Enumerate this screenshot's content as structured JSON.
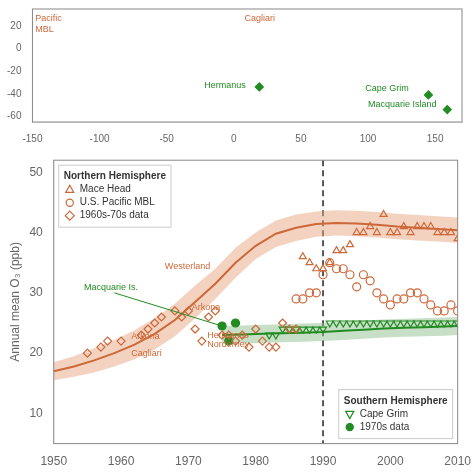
{
  "chart_data": [
    {
      "type": "scatter",
      "xlim": [
        -150,
        170
      ],
      "ylim": [
        -65,
        35
      ],
      "xticks": [
        -150,
        -100,
        -50,
        0,
        50,
        100,
        150
      ],
      "yticks": [
        -60,
        -40,
        -20,
        0,
        20
      ],
      "grid": false,
      "series": [
        {
          "type": "scatter",
          "color": "#228B22",
          "marker": "diamond",
          "x": [
            19,
            145,
            159
          ],
          "values": [
            -34,
            -41,
            -54
          ]
        }
      ],
      "annotations": [
        {
          "text": "Hermanus",
          "x": -22,
          "y": -35,
          "color": "#228B22"
        },
        {
          "text": "Cape Grim",
          "x": 98,
          "y": -38,
          "color": "#228B22"
        },
        {
          "text": "Macquarie Island",
          "x": 100,
          "y": -52,
          "color": "#228B22"
        },
        {
          "text": "Pacific\nMBL",
          "x": -148,
          "y": 24,
          "color": "#cd6839"
        },
        {
          "text": "Cagliari",
          "x": 8,
          "y": 24,
          "color": "#cd6839"
        }
      ]
    },
    {
      "type": "line",
      "ylabel": "Annual mean O₃ (ppb)",
      "xlim": [
        1950,
        2010
      ],
      "ylim": [
        5,
        52
      ],
      "xticks": [
        1950,
        1960,
        1970,
        1980,
        1990,
        2000,
        2010
      ],
      "yticks": [
        10,
        20,
        30,
        40,
        50
      ],
      "grid": false,
      "series": [
        {
          "type": "area",
          "color": "#e8a882",
          "x": [
            1950,
            1953,
            1956,
            1959,
            1962,
            1965,
            1968,
            1971,
            1974,
            1977,
            1980,
            1983,
            1986,
            1989,
            1992,
            1995,
            1998,
            2001,
            2004,
            2007,
            2010
          ],
          "lower": [
            15.5,
            16.1,
            16.8,
            17.8,
            19.0,
            20.6,
            22.8,
            25.8,
            29.0,
            32.5,
            35.6,
            37.6,
            38.6,
            39.3,
            39.5,
            39.4,
            39.2,
            38.9,
            38.7,
            38.5,
            38.3
          ],
          "upper": [
            18.5,
            19.5,
            20.8,
            22.2,
            23.8,
            25.8,
            28.2,
            31.2,
            34.0,
            37.5,
            40.0,
            42.0,
            43.0,
            43.5,
            43.7,
            43.6,
            43.4,
            43.1,
            42.9,
            42.7,
            42.5
          ]
        },
        {
          "type": "line",
          "color": "#cd6839",
          "x": [
            1950,
            1953,
            1956,
            1959,
            1962,
            1965,
            1968,
            1971,
            1974,
            1977,
            1980,
            1983,
            1986,
            1989,
            1992,
            1995,
            1998,
            2001,
            2004,
            2007,
            2010
          ],
          "values": [
            17.0,
            17.8,
            18.8,
            20.0,
            21.4,
            23.2,
            25.5,
            28.5,
            31.5,
            35.0,
            37.8,
            39.8,
            40.8,
            41.4,
            41.6,
            41.5,
            41.3,
            41.0,
            40.8,
            40.6,
            40.4
          ]
        },
        {
          "type": "area",
          "color": "#90c090",
          "x": [
            1975,
            1978,
            1981,
            1984,
            1987,
            1990,
            1993,
            1996,
            1999,
            2002,
            2005,
            2008,
            2010
          ],
          "lower": [
            21.5,
            21.6,
            21.7,
            21.8,
            21.9,
            22.0,
            22.2,
            22.4,
            22.6,
            22.7,
            22.8,
            22.9,
            23.0
          ],
          "upper": [
            24.5,
            24.6,
            24.7,
            24.8,
            24.9,
            25.0,
            25.2,
            25.4,
            25.6,
            25.7,
            25.8,
            25.9,
            26.0
          ]
        },
        {
          "type": "line",
          "color": "#228B22",
          "x": [
            1975,
            1978,
            1981,
            1984,
            1987,
            1990,
            1993,
            1996,
            1999,
            2002,
            2005,
            2008,
            2010
          ],
          "values": [
            23.0,
            23.1,
            23.2,
            23.3,
            23.4,
            23.5,
            23.7,
            23.9,
            24.1,
            24.2,
            24.3,
            24.4,
            24.5
          ]
        },
        {
          "type": "scatter",
          "name": "Mace Head",
          "color": "#cd6839",
          "marker": "triangle-open",
          "x": [
            1987,
            1988,
            1989,
            1990,
            1991,
            1992,
            1993,
            1994,
            1995,
            1996,
            1997,
            1998,
            1999,
            2000,
            2001,
            2002,
            2003,
            2004,
            2005,
            2006,
            2007,
            2008,
            2009,
            2010
          ],
          "values": [
            36,
            35,
            34,
            34,
            35,
            37,
            37,
            38,
            40,
            40,
            41,
            40,
            43,
            40,
            40,
            41,
            40,
            41,
            41,
            41,
            40,
            40,
            40,
            39
          ]
        },
        {
          "type": "scatter",
          "name": "U.S. Pacific MBL",
          "color": "#cd6839",
          "marker": "circle-open",
          "x": [
            1986,
            1987,
            1988,
            1989,
            1990,
            1991,
            1992,
            1993,
            1994,
            1995,
            1996,
            1997,
            1998,
            1999,
            2000,
            2001,
            2002,
            2003,
            2004,
            2005,
            2006,
            2007,
            2008,
            2009,
            2010
          ],
          "values": [
            29,
            29,
            30,
            30,
            33,
            35,
            34,
            34,
            33,
            31,
            33,
            32,
            30,
            29,
            28,
            29,
            29,
            30,
            30,
            29,
            28,
            27,
            27,
            28,
            27
          ]
        },
        {
          "type": "scatter",
          "name": "1960s-70s data",
          "color": "#cd6839",
          "marker": "diamond-open",
          "x": [
            1955,
            1957,
            1958,
            1960,
            1963,
            1964,
            1965,
            1966,
            1968,
            1969,
            1970,
            1971,
            1972,
            1973,
            1974,
            1975,
            1976,
            1977,
            1978,
            1979,
            1980,
            1981,
            1982,
            1983,
            1984,
            1985,
            1986
          ],
          "values": [
            20,
            21,
            22,
            22,
            23,
            24,
            25,
            26,
            27,
            26,
            27,
            24,
            22,
            26,
            27,
            23,
            23,
            22,
            23,
            21,
            24,
            22,
            21,
            21,
            25,
            24,
            24
          ]
        },
        {
          "type": "scatter",
          "name": "Cape Grim",
          "color": "#228B22",
          "marker": "triangle-down-open",
          "x": [
            1982,
            1983,
            1984,
            1985,
            1986,
            1987,
            1988,
            1989,
            1990,
            1991,
            1992,
            1993,
            1994,
            1995,
            1996,
            1997,
            1998,
            1999,
            2000,
            2001,
            2002,
            2003,
            2004,
            2005,
            2006,
            2007,
            2008,
            2009,
            2010
          ],
          "values": [
            23,
            23,
            24,
            24,
            24,
            24,
            24,
            24,
            24,
            25,
            25,
            25,
            25,
            25,
            25,
            25,
            25,
            25,
            25,
            25,
            25,
            25,
            25,
            25,
            25,
            25,
            25,
            25,
            25
          ]
        },
        {
          "type": "scatter",
          "name": "1970s data",
          "color": "#228B22",
          "marker": "circle",
          "x": [
            1975,
            1976,
            1977
          ],
          "values": [
            24.5,
            22,
            25
          ]
        },
        {
          "type": "vline",
          "color": "#000000",
          "line_style": "dashed",
          "x": [
            1990
          ]
        }
      ],
      "annotations": [
        {
          "text": "Westerland",
          "x": 1966.5,
          "y": 34.0,
          "color": "#cd6839"
        },
        {
          "text": "Macquarie Is.",
          "x": 1954.5,
          "y": 30.5,
          "color": "#228B22"
        },
        {
          "text": "Arkona",
          "x": 1970.5,
          "y": 27.2,
          "color": "#cd6839"
        },
        {
          "text": "Hermanus",
          "x": 1972.8,
          "y": 22.5,
          "color": "#cd6839"
        },
        {
          "text": "Norderney",
          "x": 1972.8,
          "y": 21.0,
          "color": "#cd6839"
        },
        {
          "text": "Arkona",
          "x": 1961.5,
          "y": 22.3,
          "color": "#cd6839"
        },
        {
          "text": "Cagliari",
          "x": 1961.5,
          "y": 19.5,
          "color": "#cd6839"
        }
      ],
      "arrows": [
        {
          "x": [
            1959,
            1975
          ],
          "y": [
            30,
            24.5
          ],
          "color": "#228B22"
        }
      ],
      "legends": [
        {
          "title": "Northern Hemisphere",
          "legend": "upper left",
          "entries": [
            "Mace Head",
            "U.S. Pacific MBL",
            "1960s-70s data"
          ]
        },
        {
          "title": "Southern Hemisphere",
          "legend": "lower right",
          "entries": [
            "Cape Grim",
            "1970s data"
          ]
        }
      ]
    }
  ]
}
